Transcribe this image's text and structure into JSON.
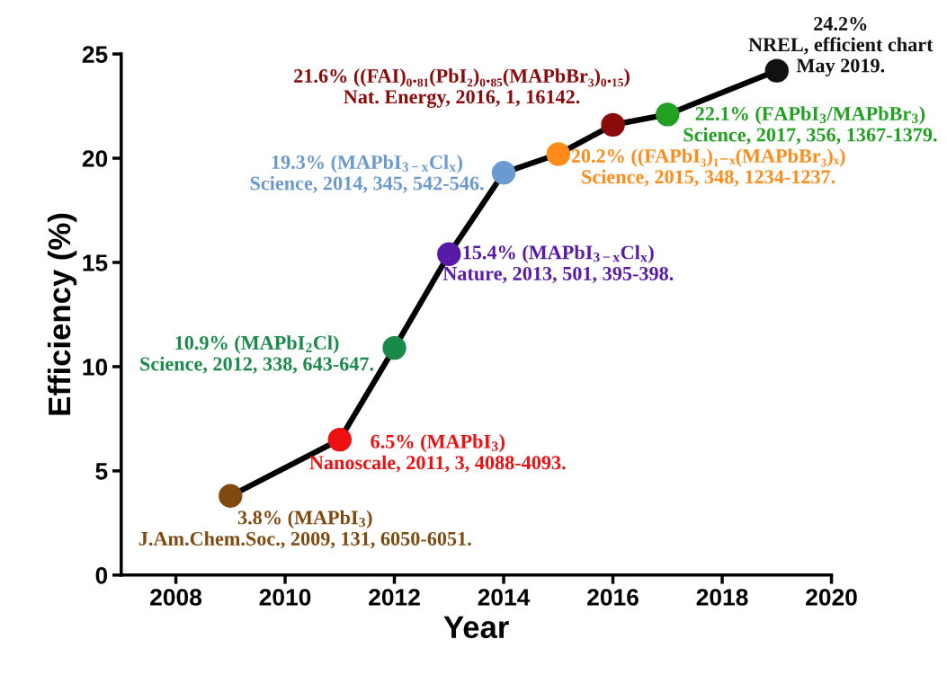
{
  "chart_data": {
    "type": "line",
    "xlabel": "Year",
    "ylabel": "Efficiency (%)",
    "x": [
      2009,
      2011,
      2012,
      2013,
      2014,
      2015,
      2016,
      2017,
      2019
    ],
    "series": [
      {
        "color": "#000000",
        "colors": [
          "#7f4a10",
          "#ee1111",
          "#1a8a4a",
          "#5a1aa8",
          "#6a9ad0",
          "#ff8c1a",
          "#8b0a0a",
          "#22a022",
          "#111111"
        ],
        "values": [
          3.8,
          6.5,
          10.9,
          15.4,
          19.3,
          20.2,
          21.6,
          22.1,
          24.2
        ]
      }
    ],
    "marker": "circle",
    "line_style": "solid",
    "xlim": [
      2007,
      2020
    ],
    "xticks": [
      2008,
      2010,
      2012,
      2014,
      2016,
      2018,
      2020
    ],
    "ylim": [
      0,
      25
    ],
    "yticks": [
      0,
      5,
      10,
      15,
      20,
      25
    ],
    "annotations": [
      {
        "text": "3.8% (MAPbI$_{3}$)\nJ.Am.Chem.Soc., 2009, 131, 6050-6051.",
        "x": 2009,
        "y": 3.8
      },
      {
        "text": "6.5% (MAPbI$_{3}$)\nNanoscale, 2011, 3, 4088-4093.",
        "x": 2011,
        "y": 6.5
      },
      {
        "text": "10.9% (MAPbI$_{2}$Cl)\nScience, 2012, 338, 643-647.",
        "x": 2012,
        "y": 10.9
      },
      {
        "text": "15.4% (MAPbI$_{3−x}$Cl$_{x}$)\nNature, 2013, 501, 395-398.",
        "x": 2013,
        "y": 15.4
      },
      {
        "text": "19.3% (MAPbI$_{3−x}$Cl$_{x}$)\nScience, 2014, 345, 542-546.",
        "x": 2014,
        "y": 19.3
      },
      {
        "text": "20.2% ((FAPbI₃)₁₋ₓ(MAPbBr₃)ₓ)\nScience, 2015, 348, 1234-1237.",
        "x": 2015,
        "y": 20.2
      },
      {
        "text": "21.6% ((FAI)₀.₈₁(PbI₂)₀.₈₅(MAPbBr₃)₀.₁₅)\nNat. Energy, 2016, 1, 16142.",
        "x": 2016,
        "y": 21.6
      },
      {
        "text": "22.1% (FAPbI$_{3}$/MAPbBr$_{3}$)\nScience, 2017, 356, 1367-1379.",
        "x": 2017,
        "y": 22.1
      },
      {
        "text": "24.2%\nNREL, efficient chart\nMay 2019.",
        "x": 2019,
        "y": 24.2
      }
    ]
  }
}
